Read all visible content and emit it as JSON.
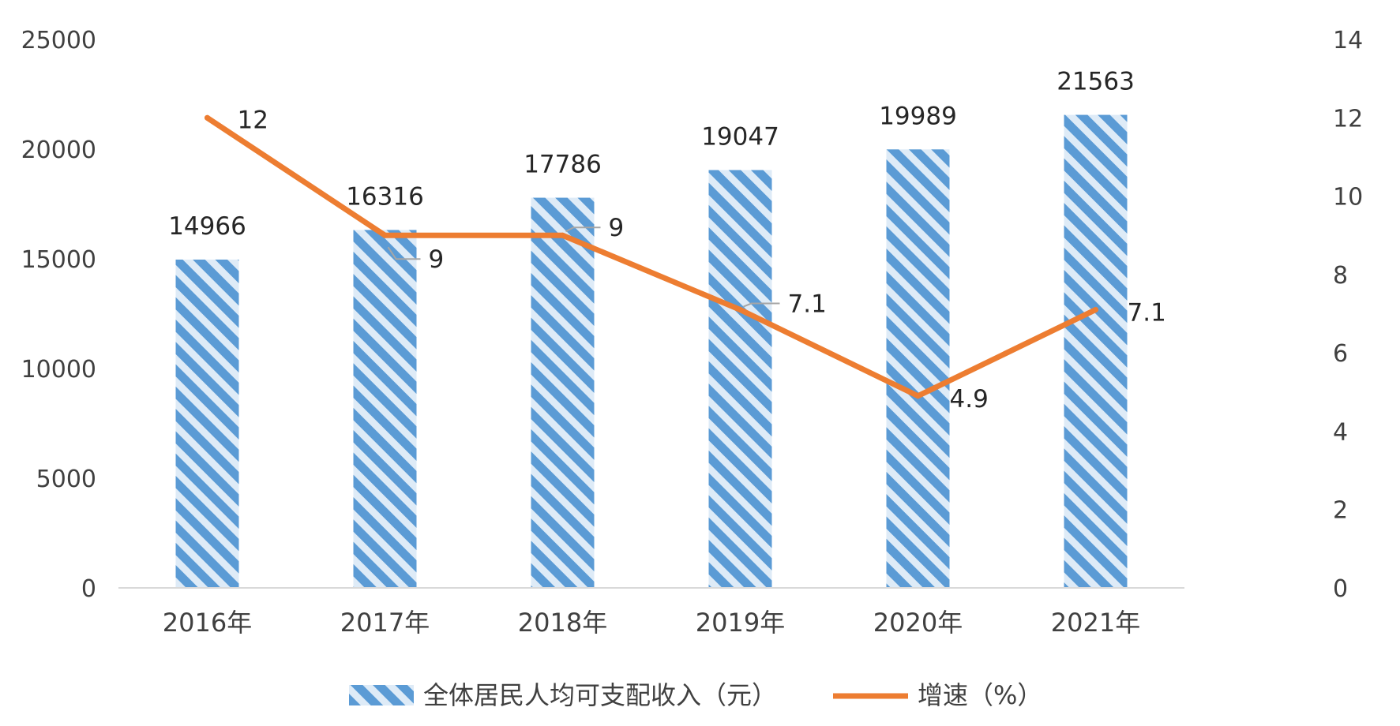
{
  "chart_data": {
    "type": "bar",
    "categories": [
      "2016年",
      "2017年",
      "2018年",
      "2019年",
      "2020年",
      "2021年"
    ],
    "series": [
      {
        "name": "全体居民人均可支配收入（元）",
        "type": "bar",
        "axis": "left",
        "values": [
          14966,
          16316,
          17786,
          19047,
          19989,
          21563
        ],
        "labels": [
          "14966",
          "16316",
          "17786",
          "19047",
          "19989",
          "21563"
        ],
        "color": "#5b9bd5",
        "pattern": "diagonal-stripes"
      },
      {
        "name": "增速（%）",
        "type": "line",
        "axis": "right",
        "values": [
          12,
          9,
          9,
          7.1,
          4.9,
          7.1
        ],
        "labels": [
          "12",
          "9",
          "9",
          "7.1",
          "4.9",
          "7.1"
        ],
        "color": "#ed7d31"
      }
    ],
    "left_axis": {
      "min": 0,
      "max": 25000,
      "ticks": [
        "0",
        "5000",
        "10000",
        "15000",
        "20000",
        "25000"
      ]
    },
    "right_axis": {
      "min": 0,
      "max": 14,
      "ticks": [
        "0",
        "2",
        "4",
        "6",
        "8",
        "10",
        "12",
        "14"
      ]
    },
    "title": "",
    "xlabel": "",
    "ylabel": "",
    "grid": false,
    "legend_position": "bottom"
  }
}
